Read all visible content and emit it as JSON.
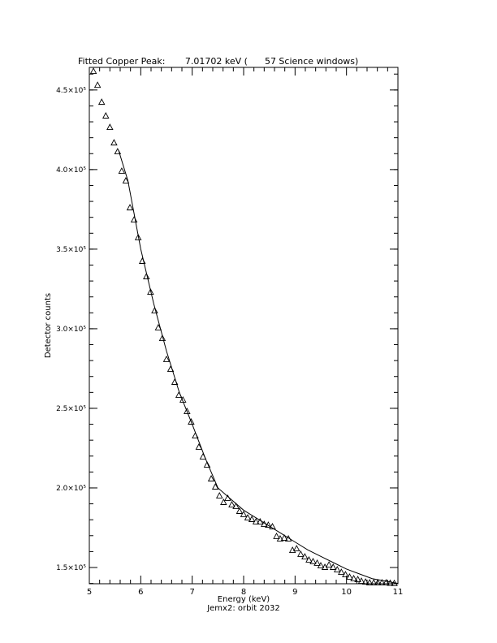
{
  "chart_data": {
    "type": "scatter",
    "title": "Fitted Copper Peak:       7.01702 keV (      57 Science windows)",
    "x_label": "Energy (keV)",
    "subtitle": "Jemx2: orbit 2032",
    "y_label": "Detector counts",
    "xlim": [
      5,
      11
    ],
    "xticks": [
      5,
      6,
      7,
      8,
      9,
      10,
      11
    ],
    "xminor": 5,
    "ylim": [
      139800,
      464200
    ],
    "yticks": [
      {
        "value": 150000,
        "label": "1.5×10⁵"
      },
      {
        "value": 200000,
        "label": "2.0×10⁵"
      },
      {
        "value": 250000,
        "label": "2.5×10⁵"
      },
      {
        "value": 300000,
        "label": "3.0×10⁵"
      },
      {
        "value": 350000,
        "label": "3.5×10⁵"
      },
      {
        "value": 400000,
        "label": "4.0×10⁵"
      },
      {
        "value": 450000,
        "label": "4.5×10⁵"
      }
    ],
    "yminor": 5,
    "series": [
      {
        "color": "#000000",
        "marker": "triangle",
        "x": [
          5.08,
          5.16,
          5.24,
          5.32,
          5.4,
          5.48,
          5.55,
          5.63,
          5.71,
          5.79,
          5.87,
          5.95,
          6.03,
          6.11,
          6.19,
          6.27,
          6.34,
          6.42,
          6.5,
          6.58,
          6.66,
          6.74,
          6.82,
          6.9,
          6.98,
          7.06,
          7.13,
          7.21,
          7.29,
          7.37,
          7.45,
          7.53,
          7.61,
          7.69,
          7.77,
          7.85,
          7.92,
          8.0,
          8.08,
          8.16,
          8.24,
          8.32,
          8.4,
          8.48,
          8.56,
          8.64,
          8.71,
          8.79,
          8.87,
          8.95,
          9.03,
          9.11,
          9.19,
          9.27,
          9.35,
          9.43,
          9.5,
          9.58,
          9.66,
          9.74,
          9.82,
          9.9,
          9.98,
          10.06,
          10.14,
          10.22,
          10.29,
          10.37,
          10.45,
          10.53,
          10.61,
          10.69,
          10.77,
          10.85,
          10.93
        ],
        "values": [
          461600,
          452900,
          442200,
          433600,
          426400,
          416700,
          411100,
          398900,
          392800,
          375900,
          368300,
          357100,
          342300,
          332600,
          322900,
          311200,
          300500,
          293800,
          280600,
          274400,
          266300,
          258100,
          255100,
          247900,
          241300,
          232600,
          225500,
          219400,
          214300,
          205600,
          200500,
          194900,
          190800,
          193400,
          189300,
          188300,
          185200,
          183200,
          181100,
          180100,
          178600,
          178600,
          177000,
          176500,
          175500,
          169400,
          167900,
          168400,
          167900,
          160700,
          161700,
          158200,
          156600,
          154600,
          153600,
          152600,
          151000,
          150000,
          151500,
          150000,
          148500,
          146900,
          145400,
          143900,
          142900,
          142300,
          141300,
          140800,
          140300,
          140300,
          140300,
          140300,
          140300,
          140000,
          139900
        ]
      },
      {
        "color": "#000000",
        "marker": "line",
        "x": [
          5.57,
          5.75,
          6.0,
          6.25,
          6.5,
          6.75,
          7.0,
          7.25,
          7.5,
          7.75,
          8.0,
          8.25,
          8.5,
          8.75,
          9.0,
          9.25,
          9.5,
          9.75,
          10.0,
          10.25,
          10.5,
          10.75,
          11.0
        ],
        "values": [
          412000,
          393000,
          350000,
          316000,
          286000,
          260000,
          240000,
          219000,
          200000,
          193000,
          186000,
          181000,
          176000,
          171000,
          166000,
          161000,
          157000,
          153000,
          149000,
          146000,
          143000,
          141500,
          140000
        ]
      }
    ]
  }
}
